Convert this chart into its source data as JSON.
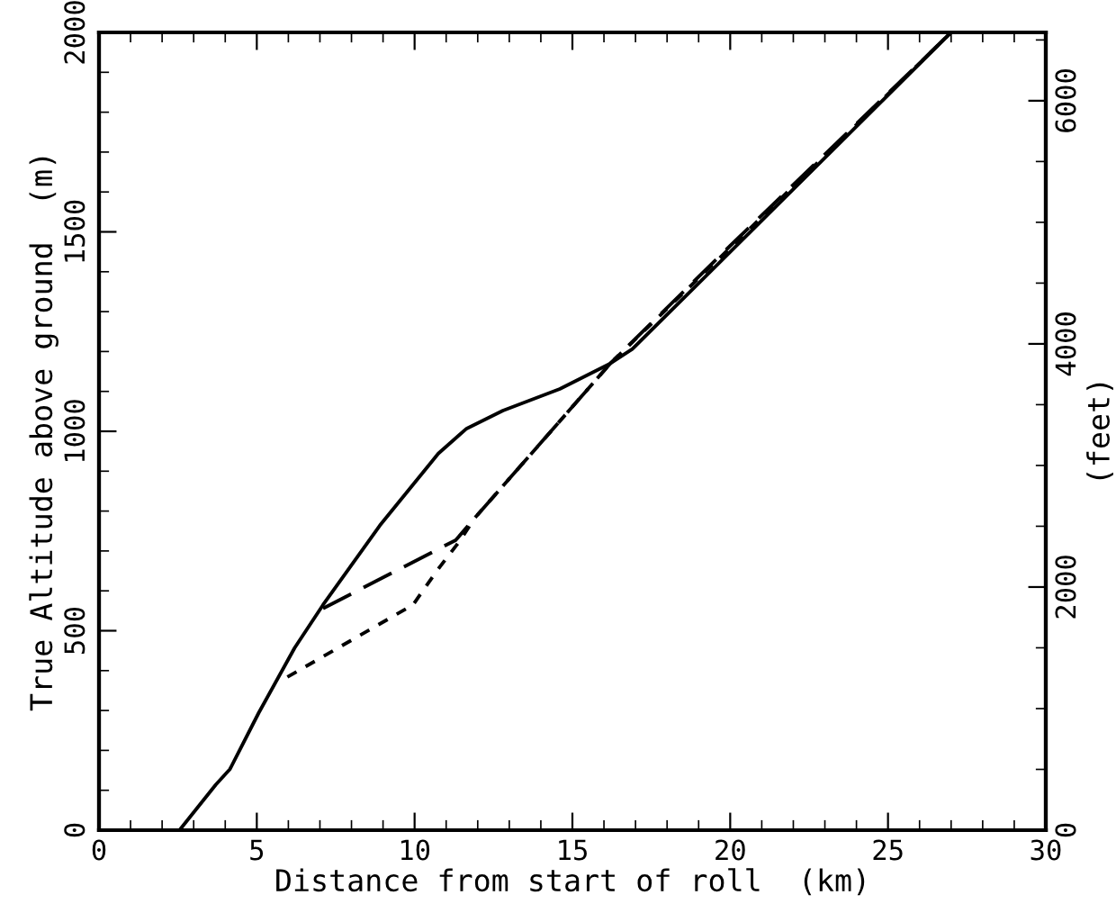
{
  "chart_data": {
    "type": "line",
    "xlabel": "Distance from start of roll  (km)",
    "ylabel": "True Altitude above ground  (m)",
    "y2label": "(feet)",
    "xlim": [
      0,
      30
    ],
    "xticks": [
      0,
      {
        "value": 1,
        "label": null
      },
      {
        "value": 2,
        "label": null
      },
      {
        "value": 3,
        "label": null
      },
      {
        "value": 4,
        "label": null
      },
      5,
      {
        "value": 6,
        "label": null
      },
      {
        "value": 7,
        "label": null
      },
      {
        "value": 8,
        "label": null
      },
      {
        "value": 9,
        "label": null
      },
      10,
      {
        "value": 11,
        "label": null
      },
      {
        "value": 12,
        "label": null
      },
      {
        "value": 13,
        "label": null
      },
      {
        "value": 14,
        "label": null
      },
      15,
      {
        "value": 16,
        "label": null
      },
      {
        "value": 17,
        "label": null
      },
      {
        "value": 18,
        "label": null
      },
      {
        "value": 19,
        "label": null
      },
      20,
      {
        "value": 21,
        "label": null
      },
      {
        "value": 22,
        "label": null
      },
      {
        "value": 23,
        "label": null
      },
      {
        "value": 24,
        "label": null
      },
      25,
      {
        "value": 26,
        "label": null
      },
      {
        "value": 27,
        "label": null
      },
      {
        "value": 28,
        "label": null
      },
      {
        "value": 29,
        "label": null
      },
      30
    ],
    "ylim": [
      0,
      2000
    ],
    "yticks": [
      0,
      {
        "value": 100,
        "label": null
      },
      {
        "value": 200,
        "label": null
      },
      {
        "value": 300,
        "label": null
      },
      {
        "value": 400,
        "label": null
      },
      500,
      {
        "value": 600,
        "label": null
      },
      {
        "value": 700,
        "label": null
      },
      {
        "value": 800,
        "label": null
      },
      {
        "value": 900,
        "label": null
      },
      1000,
      {
        "value": 1100,
        "label": null
      },
      {
        "value": 1200,
        "label": null
      },
      {
        "value": 1300,
        "label": null
      },
      {
        "value": 1400,
        "label": null
      },
      1500,
      {
        "value": 1600,
        "label": null
      },
      {
        "value": 1700,
        "label": null
      },
      {
        "value": 1800,
        "label": null
      },
      {
        "value": 1900,
        "label": null
      },
      2000
    ],
    "y2lim": [
      0,
      6562
    ],
    "y2ticks": [
      0,
      {
        "value": 500,
        "label": null
      },
      {
        "value": 1000,
        "label": null
      },
      {
        "value": 1500,
        "label": null
      },
      2000,
      {
        "value": 2500,
        "label": null
      },
      {
        "value": 3000,
        "label": null
      },
      {
        "value": 3500,
        "label": null
      },
      4000,
      {
        "value": 4500,
        "label": null
      },
      {
        "value": 5000,
        "label": null
      },
      {
        "value": 5500,
        "label": null
      },
      6000,
      {
        "value": 6500,
        "label": null
      }
    ],
    "grid": false,
    "legend": false,
    "series": [
      {
        "color": "#000000",
        "line_style": "solid",
        "x": [
          2.55,
          3.7,
          4.15,
          5.06,
          6.2,
          7.1,
          8.9,
          10.75,
          11.65,
          12.8,
          14.6,
          16.2,
          16.9,
          27.0
        ],
        "values": [
          0,
          114,
          153,
          294,
          457,
          565,
          764,
          944,
          1007,
          1052,
          1106,
          1170,
          1206,
          2000
        ]
      },
      {
        "color": "#000000",
        "line_style": "dashed",
        "x": [
          7.1,
          11.3,
          11.9,
          13.9,
          16.2,
          20.0,
          27.0
        ],
        "values": [
          556,
          727,
          782,
          962,
          1170,
          1465,
          2000
        ]
      },
      {
        "color": "#000000",
        "line_style": "dotted",
        "x": [
          5.97,
          9.95,
          10.75,
          11.45,
          11.9,
          13.9,
          16.2,
          20.0,
          27.0
        ],
        "values": [
          384,
          565,
          655,
          727,
          782,
          962,
          1170,
          1460,
          2000
        ]
      }
    ]
  }
}
